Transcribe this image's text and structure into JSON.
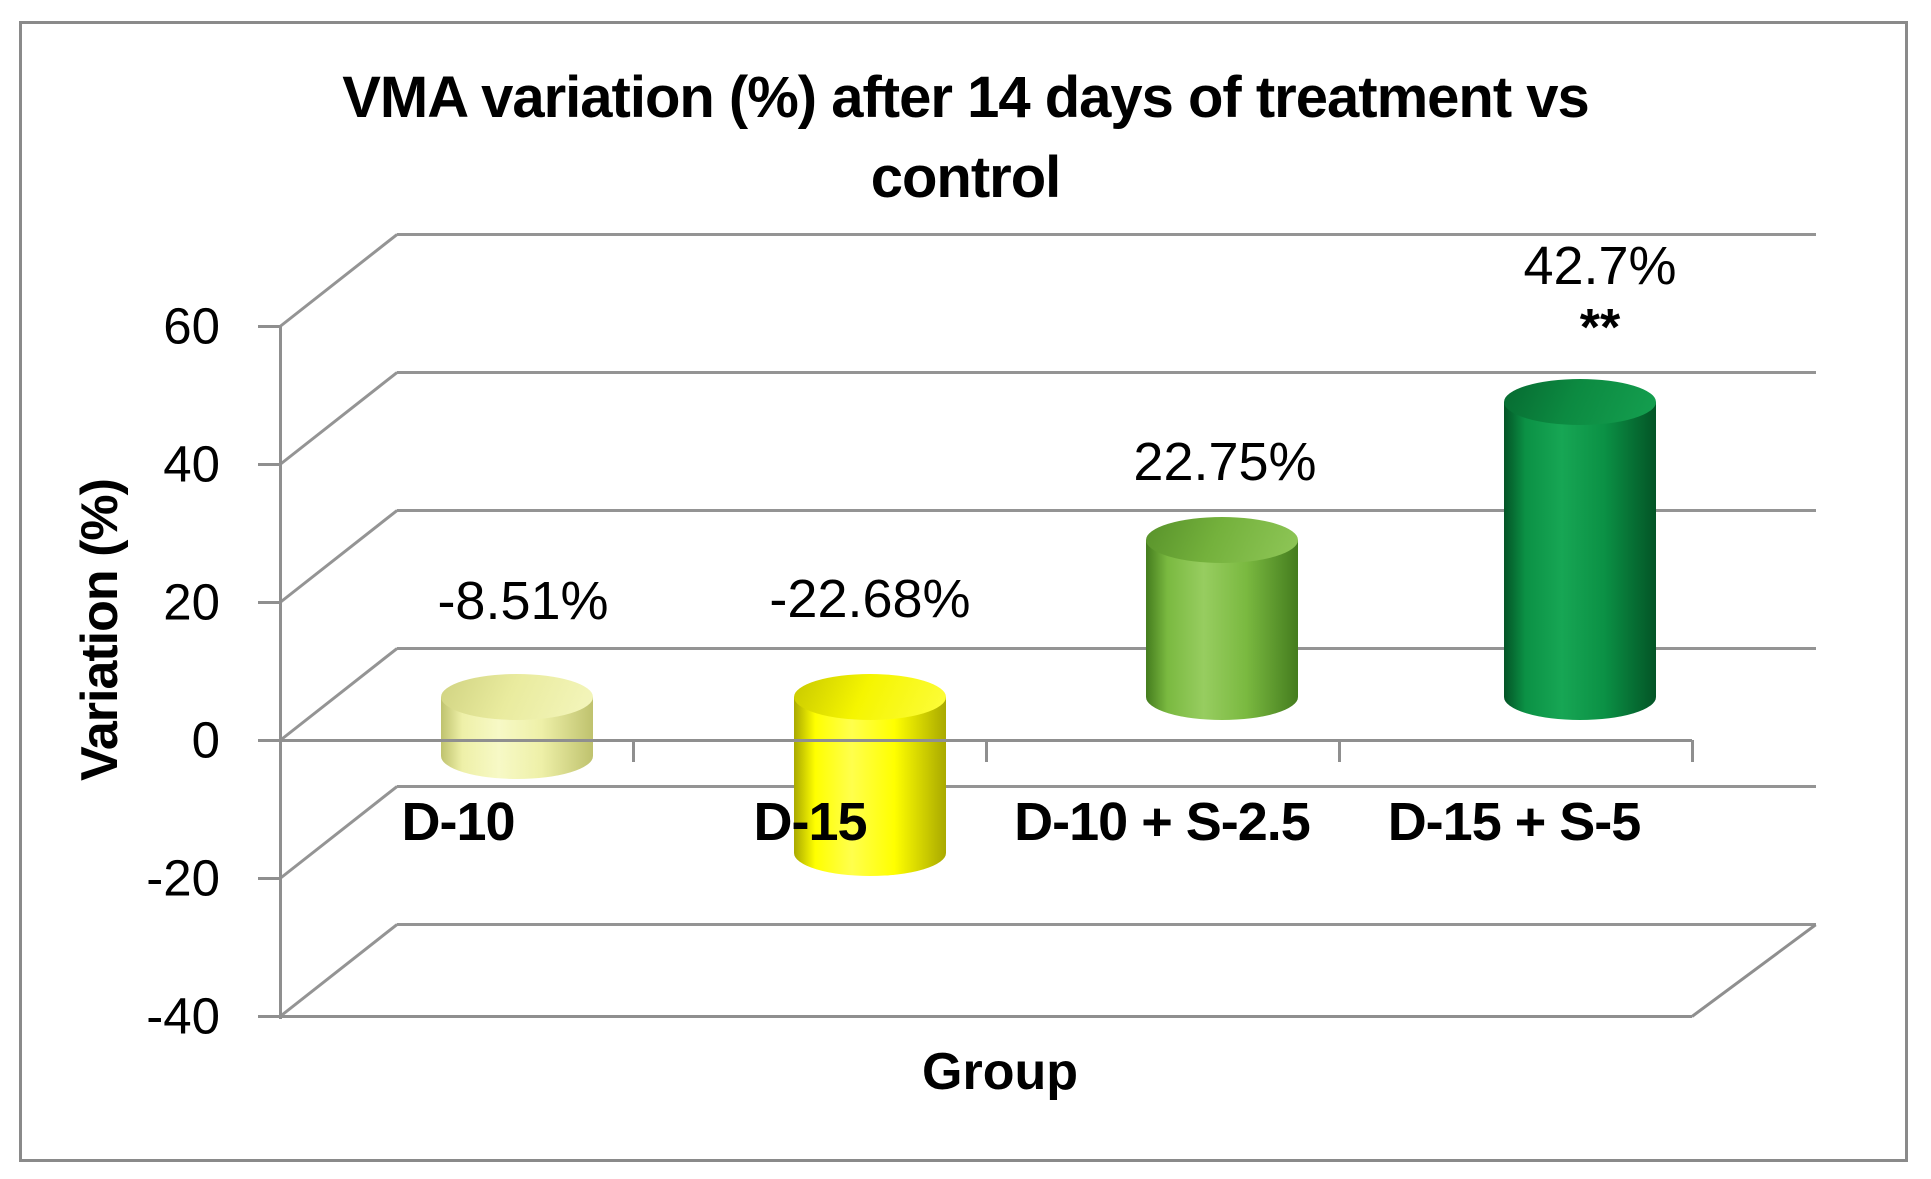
{
  "title": {
    "line1": "VMA variation (%) after 14 days of treatment vs",
    "line2": "control"
  },
  "y_axis": {
    "title": "Variation (%)",
    "tick_labels": [
      "60",
      "40",
      "20",
      "0",
      "-20",
      "-40"
    ]
  },
  "x_axis": {
    "title": "Group",
    "category_labels": [
      "D-10",
      "D-15",
      "D-10 + S-2.5",
      "D-15 + S-5"
    ]
  },
  "bars": [
    {
      "category": "D-10",
      "value": -8.51,
      "value_label": "-8.51%",
      "significance": "",
      "fill": "#eef0a8",
      "fill_light": "#f7f9c6",
      "fill_dark": "#bfc26e",
      "top_fill": "#e9eb9e"
    },
    {
      "category": "D-15",
      "value": -22.68,
      "value_label": "-22.68%",
      "significance": "",
      "fill": "#ffff00",
      "fill_light": "#ffff4d",
      "fill_dark": "#a9a900",
      "top_fill": "#f5f500"
    },
    {
      "category": "D-10 + S-2.5",
      "value": 22.75,
      "value_label": "22.75%",
      "significance": "",
      "fill": "#7ab940",
      "fill_light": "#97cd60",
      "fill_dark": "#447c1e",
      "top_fill": "#74b13c"
    },
    {
      "category": "D-15 + S-5",
      "value": 42.7,
      "value_label": "42.7%",
      "significance": "**",
      "fill": "#0b9145",
      "fill_light": "#17a654",
      "fill_dark": "#035426",
      "top_fill": "#0c8a41"
    }
  ],
  "chart_data": {
    "type": "bar",
    "subtype": "3d-cylinder",
    "title": "VMA variation (%) after 14 days of treatment vs control",
    "categories": [
      "D-10",
      "D-15",
      "D-10 + S-2.5",
      "D-15 + S-5"
    ],
    "values": [
      -8.51,
      -22.68,
      22.75,
      42.7
    ],
    "data_labels": [
      "-8.51%",
      "-22.68%",
      "22.75%",
      "42.7%"
    ],
    "annotations": [
      {
        "category": "D-15 + S-5",
        "text": "**",
        "meaning_note": "significance marker shown under the 42.7% label"
      }
    ],
    "xlabel": "Group",
    "ylabel": "Variation (%)",
    "ylim": [
      -40,
      60
    ],
    "ytick_step": 20,
    "grid": true,
    "legend": false,
    "bar_colors": [
      "#eef0a8",
      "#ffff00",
      "#7ab940",
      "#0b9145"
    ]
  },
  "colors": {
    "background": "#ffffff",
    "border": "#8a8a8a",
    "gridline": "#949494",
    "text": "#000000"
  }
}
